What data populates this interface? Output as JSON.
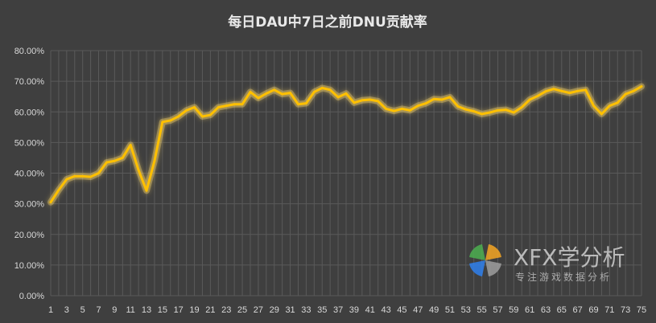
{
  "chart_data": {
    "type": "line",
    "title": "每日DAU中7日之前DNU贡献率",
    "xlabel": "",
    "ylabel": "",
    "ylim": [
      0,
      80
    ],
    "y_ticks": [
      "0.00%",
      "10.00%",
      "20.00%",
      "30.00%",
      "40.00%",
      "50.00%",
      "60.00%",
      "70.00%",
      "80.00%"
    ],
    "x_tick_labels": [
      "1",
      "3",
      "5",
      "7",
      "9",
      "11",
      "13",
      "15",
      "17",
      "19",
      "21",
      "23",
      "25",
      "27",
      "29",
      "31",
      "33",
      "35",
      "37",
      "39",
      "41",
      "43",
      "45",
      "47",
      "49",
      "51",
      "53",
      "55",
      "57",
      "59",
      "61",
      "63",
      "65",
      "67",
      "69",
      "71",
      "73",
      "75"
    ],
    "grid": true,
    "x": [
      1,
      2,
      3,
      4,
      5,
      6,
      7,
      8,
      9,
      10,
      11,
      12,
      13,
      14,
      15,
      16,
      17,
      18,
      19,
      20,
      21,
      22,
      23,
      24,
      25,
      26,
      27,
      28,
      29,
      30,
      31,
      32,
      33,
      34,
      35,
      36,
      37,
      38,
      39,
      40,
      41,
      42,
      43,
      44,
      45,
      46,
      47,
      48,
      49,
      50,
      51,
      52,
      53,
      54,
      55,
      56,
      57,
      58,
      59,
      60,
      61,
      62,
      63,
      64,
      65,
      66,
      67,
      68,
      69,
      70,
      71,
      72,
      73,
      74,
      75
    ],
    "series": [
      {
        "name": "",
        "color": "#ffc000",
        "values": [
          30.5,
          34.5,
          38.0,
          39.0,
          39.0,
          38.8,
          40.0,
          43.5,
          44.0,
          45.0,
          49.2,
          41.0,
          34.3,
          44.0,
          56.7,
          57.2,
          58.5,
          60.5,
          61.5,
          58.5,
          59.0,
          61.5,
          62.0,
          62.5,
          62.5,
          66.5,
          64.5,
          66.0,
          67.2,
          65.8,
          66.2,
          62.5,
          62.8,
          66.5,
          67.8,
          67.2,
          64.8,
          66.0,
          63.0,
          63.8,
          64.0,
          63.5,
          61.0,
          60.3,
          61.0,
          60.5,
          62.0,
          62.8,
          64.2,
          64.0,
          64.8,
          61.8,
          60.8,
          60.2,
          59.3,
          59.8,
          60.5,
          60.7,
          59.8,
          61.5,
          64.0,
          65.2,
          66.7,
          67.5,
          66.8,
          66.2,
          66.8,
          67.2,
          62.0,
          59.3,
          62.0,
          63.0,
          65.8,
          66.8,
          68.3
        ]
      }
    ]
  },
  "watermark": {
    "brand": "XFX学分析",
    "subtitle": "专注游戏数据分析"
  },
  "colors": {
    "background": "#3f3f3f",
    "grid": "#5a5a5a",
    "line": "#ffc000",
    "glow": "#ffd966"
  }
}
